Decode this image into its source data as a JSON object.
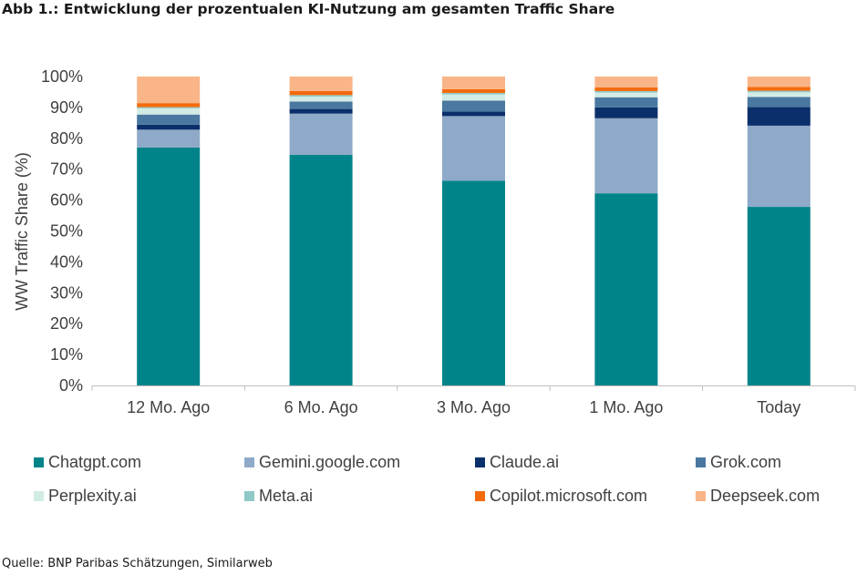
{
  "title": "Abb 1.: Entwicklung der prozentualen KI-Nutzung am gesamten Traffic Share",
  "source": "Quelle: BNP Paribas Schätzungen, Similarweb",
  "chart_data": {
    "type": "bar",
    "stacked": true,
    "categories": [
      "12 Mo. Ago",
      "6 Mo. Ago",
      "3 Mo. Ago",
      "1 Mo. Ago",
      "Today"
    ],
    "ylabel": "WW Traffic Share (%)",
    "xlabel": "",
    "ylim": [
      0,
      100
    ],
    "yticks": [
      "0%",
      "10%",
      "20%",
      "30%",
      "40%",
      "50%",
      "60%",
      "70%",
      "80%",
      "90%",
      "100%"
    ],
    "grid": false,
    "legend_position": "bottom",
    "series": [
      {
        "name": "Chatgpt.com",
        "color": "#00848A",
        "values": [
          77,
          74.7,
          66.3,
          62.2,
          57.8
        ]
      },
      {
        "name": "Gemini.google.com",
        "color": "#8EAAC8",
        "values": [
          5.8,
          13.3,
          20.9,
          24.3,
          26.3
        ]
      },
      {
        "name": "Claude.ai",
        "color": "#0B2F6A",
        "values": [
          1.6,
          1.5,
          1.5,
          3.5,
          6
        ]
      },
      {
        "name": "Grok.com",
        "color": "#4A78A0",
        "values": [
          3.3,
          2.4,
          3.5,
          3.3,
          3.3
        ]
      },
      {
        "name": "Perplexity.ai",
        "color": "#D2EBE5",
        "values": [
          2,
          1.6,
          2,
          1.5,
          1.5
        ]
      },
      {
        "name": "Meta.ai",
        "color": "#8FC9C5",
        "values": [
          0.4,
          0.5,
          0.5,
          0.5,
          0.5
        ]
      },
      {
        "name": "Copilot.microsoft.com",
        "color": "#F46A0C",
        "values": [
          1.3,
          1.3,
          1.2,
          1.2,
          1.2
        ]
      },
      {
        "name": "Deepseek.com",
        "color": "#F9B587",
        "values": [
          8.6,
          4.7,
          4.1,
          3.5,
          3.4
        ]
      }
    ]
  }
}
